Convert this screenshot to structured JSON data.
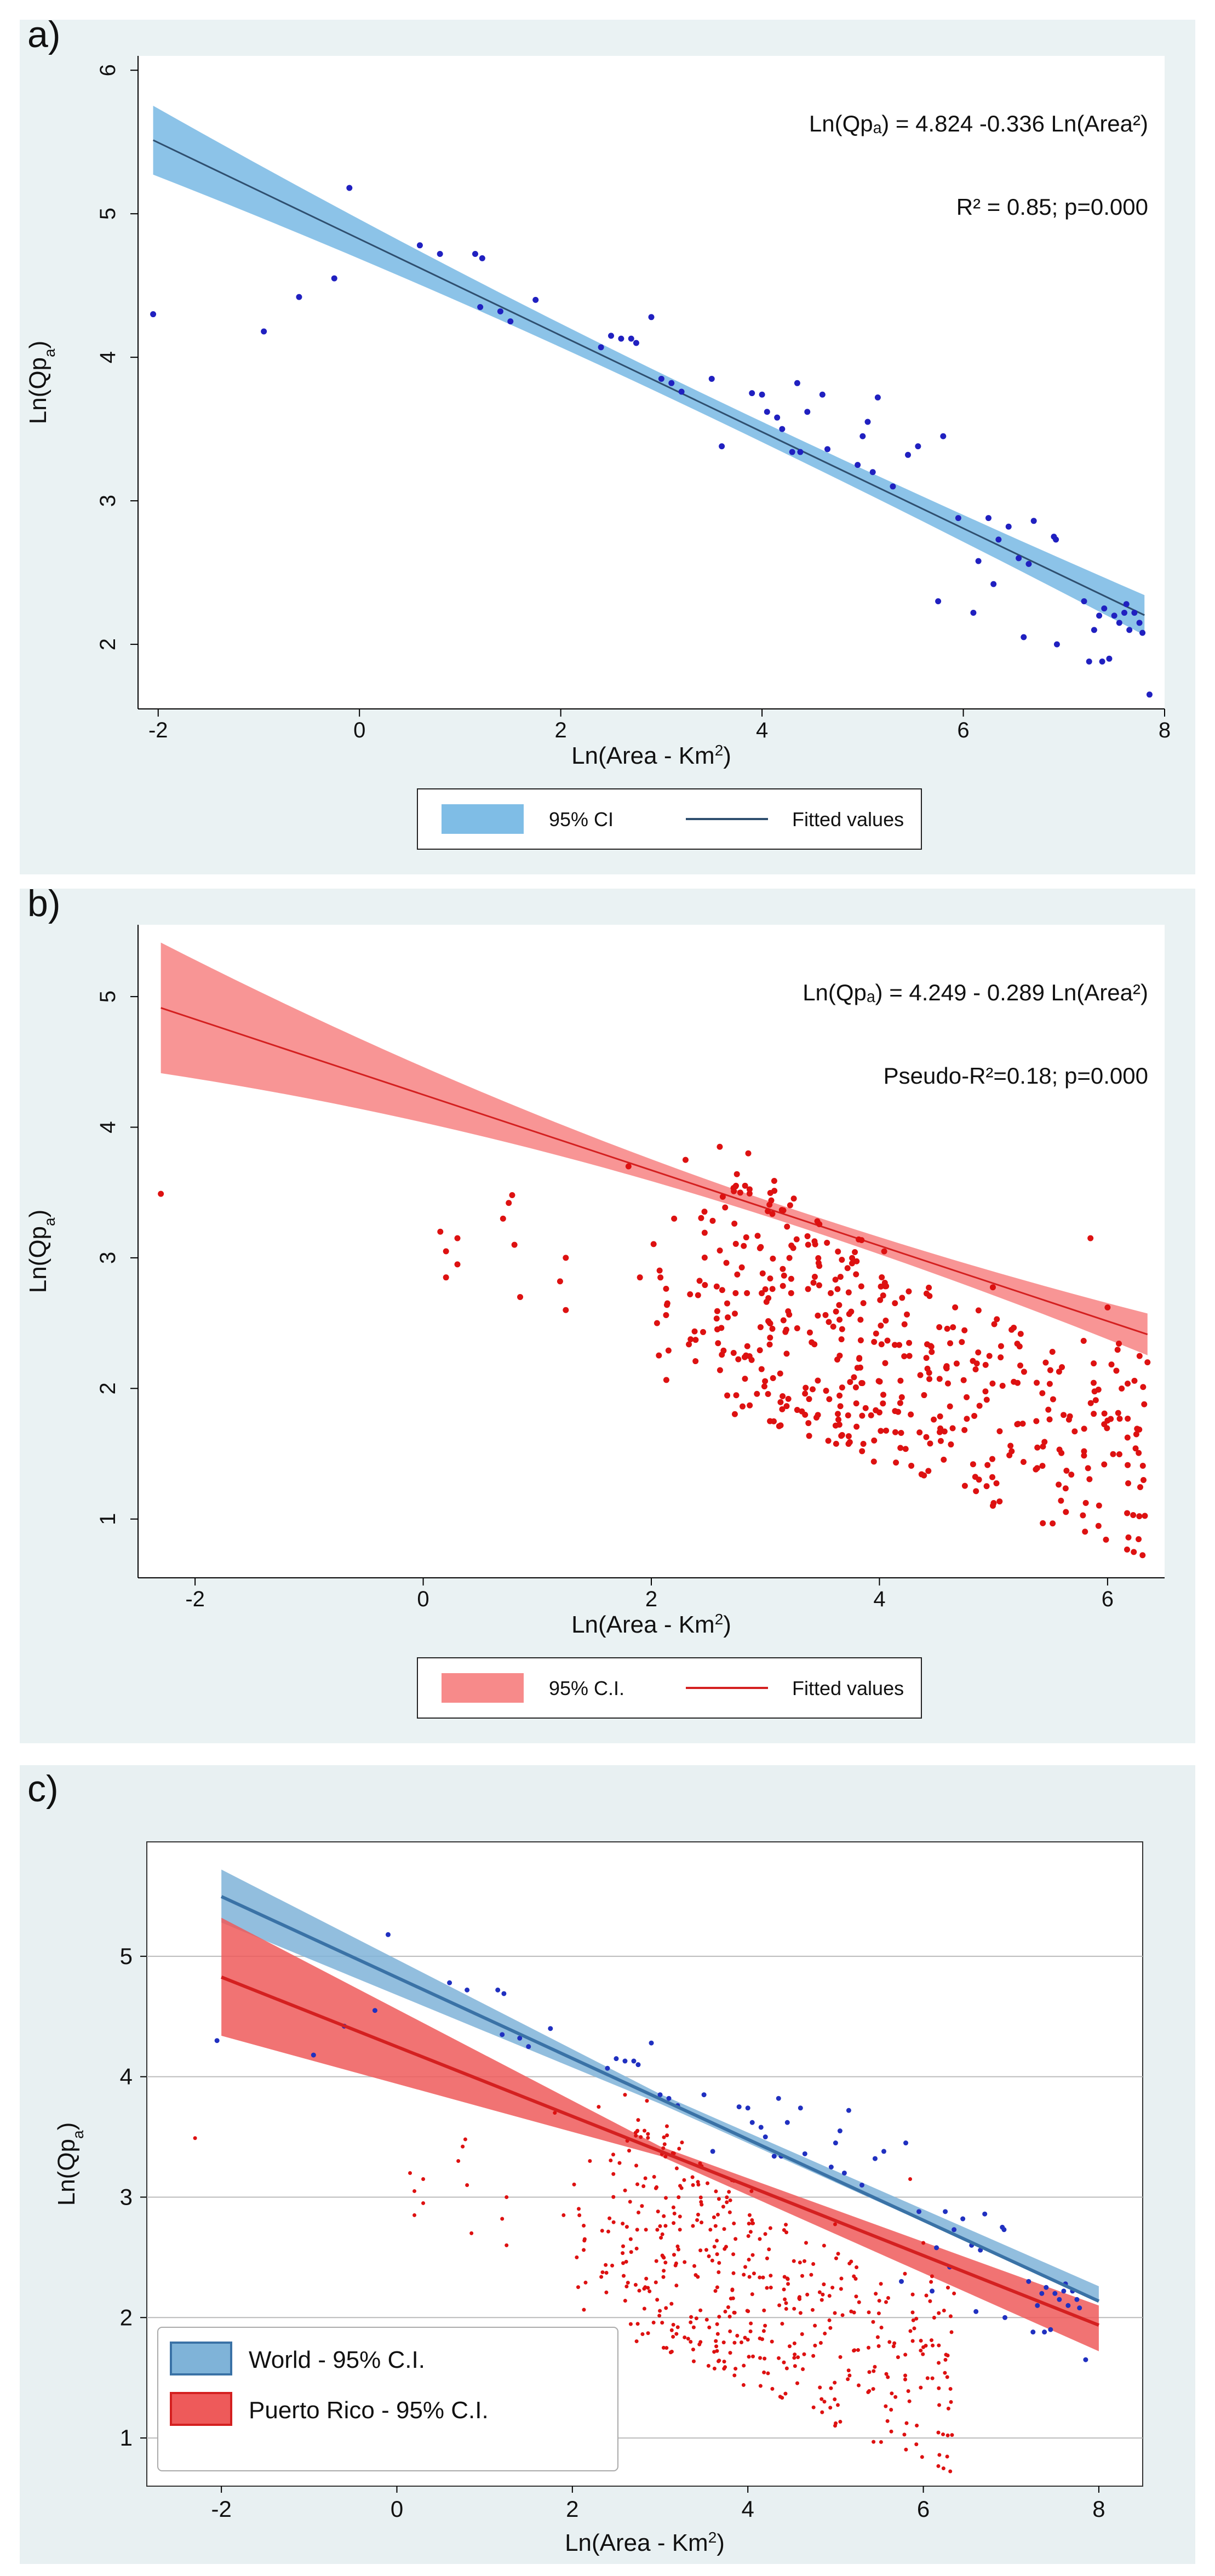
{
  "chart_data": [
    {
      "type": "scatter",
      "panel_label": "a)",
      "title": "",
      "xlabel": "Ln(Area - Km",
      "xlabel_sup": "2",
      "xlabel_end": ")",
      "ylabel": "Ln(Qp",
      "ylabel_sub": "a",
      "ylabel_end": ")",
      "xlim": [
        -2.2,
        8.0
      ],
      "ylim": [
        1.55,
        6.1
      ],
      "xticks": [
        -2,
        0,
        2,
        4,
        6,
        8
      ],
      "yticks": [
        2,
        3,
        4,
        5,
        6
      ],
      "grid": false,
      "equation": "Ln(Qpₐ) = 4.824 -0.336 Ln(Area²)",
      "stats": "R² = 0.85; p=0.000",
      "fit": {
        "intercept": 4.824,
        "slope": -0.336,
        "x_range": [
          -2.05,
          7.8
        ]
      },
      "ci_half_width": {
        "at_min": 0.24,
        "at_mean": 0.07,
        "at_max": 0.14,
        "x_mean": 3.5
      },
      "legend": [
        "95% CI",
        "Fitted values"
      ],
      "colors": {
        "points": "#2020c0",
        "band": "#7fbde6",
        "line": "#2f4f6f"
      },
      "points": [
        [
          -2.05,
          4.3
        ],
        [
          -0.95,
          4.18
        ],
        [
          -0.6,
          4.42
        ],
        [
          -0.25,
          4.55
        ],
        [
          -0.1,
          5.18
        ],
        [
          0.6,
          4.78
        ],
        [
          0.8,
          4.72
        ],
        [
          1.15,
          4.72
        ],
        [
          1.22,
          4.69
        ],
        [
          1.2,
          4.35
        ],
        [
          1.4,
          4.32
        ],
        [
          1.5,
          4.25
        ],
        [
          1.75,
          4.4
        ],
        [
          2.4,
          4.07
        ],
        [
          2.5,
          4.15
        ],
        [
          2.6,
          4.13
        ],
        [
          2.7,
          4.13
        ],
        [
          2.75,
          4.1
        ],
        [
          2.9,
          4.28
        ],
        [
          3.0,
          3.85
        ],
        [
          3.1,
          3.82
        ],
        [
          3.2,
          3.76
        ],
        [
          3.5,
          3.85
        ],
        [
          3.6,
          3.38
        ],
        [
          3.9,
          3.75
        ],
        [
          4.0,
          3.74
        ],
        [
          4.05,
          3.62
        ],
        [
          4.15,
          3.58
        ],
        [
          4.2,
          3.5
        ],
        [
          4.3,
          3.34
        ],
        [
          4.35,
          3.82
        ],
        [
          4.38,
          3.34
        ],
        [
          4.45,
          3.62
        ],
        [
          4.6,
          3.74
        ],
        [
          4.65,
          3.36
        ],
        [
          4.95,
          3.25
        ],
        [
          5.0,
          3.45
        ],
        [
          5.05,
          3.55
        ],
        [
          5.1,
          3.2
        ],
        [
          5.15,
          3.72
        ],
        [
          5.3,
          3.1
        ],
        [
          5.45,
          3.32
        ],
        [
          5.55,
          3.38
        ],
        [
          5.8,
          3.45
        ],
        [
          5.75,
          2.3
        ],
        [
          5.95,
          2.88
        ],
        [
          6.1,
          2.22
        ],
        [
          6.15,
          2.58
        ],
        [
          6.25,
          2.88
        ],
        [
          6.3,
          2.42
        ],
        [
          6.35,
          2.73
        ],
        [
          6.45,
          2.82
        ],
        [
          6.55,
          2.6
        ],
        [
          6.6,
          2.05
        ],
        [
          6.65,
          2.56
        ],
        [
          6.7,
          2.86
        ],
        [
          6.9,
          2.75
        ],
        [
          6.92,
          2.73
        ],
        [
          6.93,
          2.0
        ],
        [
          7.2,
          2.3
        ],
        [
          7.25,
          1.88
        ],
        [
          7.3,
          2.1
        ],
        [
          7.35,
          2.2
        ],
        [
          7.38,
          1.88
        ],
        [
          7.45,
          1.9
        ],
        [
          7.5,
          2.2
        ],
        [
          7.55,
          2.15
        ],
        [
          7.6,
          2.22
        ],
        [
          7.65,
          2.1
        ],
        [
          7.7,
          2.22
        ],
        [
          7.75,
          2.15
        ],
        [
          7.78,
          2.08
        ],
        [
          7.85,
          1.65
        ],
        [
          7.4,
          2.25
        ],
        [
          7.62,
          2.28
        ]
      ]
    },
    {
      "type": "scatter",
      "panel_label": "b)",
      "title": "",
      "xlabel": "Ln(Area - Km",
      "xlabel_sup": "2",
      "xlabel_end": ")",
      "ylabel": "Ln(Qp",
      "ylabel_sub": "a",
      "ylabel_end": ")",
      "xlim": [
        -2.5,
        6.5
      ],
      "ylim": [
        0.55,
        5.55
      ],
      "xticks": [
        -2,
        0,
        2,
        4,
        6
      ],
      "yticks": [
        1,
        2,
        3,
        4,
        5
      ],
      "grid": false,
      "equation": "Ln(Qpₐ) = 4.249 - 0.289 Ln(Area²)",
      "stats": "Pseudo-R²=0.18; p=0.000",
      "fit": {
        "intercept": 4.249,
        "slope": -0.289,
        "x_range": [
          -2.3,
          6.35
        ]
      },
      "ci_half_width": {
        "at_min": 0.5,
        "at_mean": 0.06,
        "at_max": 0.16,
        "x_mean": 3.3
      },
      "legend": [
        "95% C.I.",
        "Fitted values"
      ],
      "colors": {
        "points": "#dd1111",
        "band": "#f78a8a",
        "line": "#d42020"
      },
      "points_summary": "Approximately 700 Puerto Rico observations, Ln(Area) from -2.3 to 6.35, Ln(Qpa) from 0.7 to 3.85, concentrated between Ln(Area) 2 and 6.3; drawn as generated scatter.",
      "points": [
        [
          -2.3,
          3.49
        ],
        [
          0.15,
          3.2
        ],
        [
          0.2,
          3.05
        ],
        [
          0.2,
          2.85
        ],
        [
          0.3,
          3.15
        ],
        [
          0.3,
          2.95
        ],
        [
          0.7,
          3.3
        ],
        [
          0.75,
          3.42
        ],
        [
          0.78,
          3.48
        ],
        [
          0.8,
          3.1
        ],
        [
          0.85,
          2.7
        ],
        [
          1.2,
          2.82
        ],
        [
          1.25,
          3.0
        ],
        [
          1.25,
          2.6
        ],
        [
          1.8,
          3.7
        ],
        [
          1.9,
          2.85
        ],
        [
          2.05,
          2.5
        ],
        [
          2.2,
          3.3
        ],
        [
          2.3,
          3.75
        ],
        [
          2.6,
          3.85
        ],
        [
          2.85,
          3.8
        ],
        [
          6.0,
          2.62
        ],
        [
          6.35,
          2.2
        ],
        [
          5.85,
          3.15
        ]
      ],
      "point_clusters": [
        {
          "x": 2.1,
          "y_min": 2.0,
          "y_max": 3.2,
          "n": 10
        },
        {
          "x": 2.4,
          "y_min": 1.9,
          "y_max": 3.5,
          "n": 14
        },
        {
          "x": 2.6,
          "y_min": 1.85,
          "y_max": 3.6,
          "n": 18
        },
        {
          "x": 2.8,
          "y_min": 1.8,
          "y_max": 3.7,
          "n": 30
        },
        {
          "x": 3.0,
          "y_min": 1.7,
          "y_max": 3.6,
          "n": 34
        },
        {
          "x": 3.2,
          "y_min": 1.7,
          "y_max": 3.5,
          "n": 30
        },
        {
          "x": 3.4,
          "y_min": 1.6,
          "y_max": 3.3,
          "n": 28
        },
        {
          "x": 3.6,
          "y_min": 1.55,
          "y_max": 3.2,
          "n": 30
        },
        {
          "x": 3.8,
          "y_min": 1.5,
          "y_max": 3.2,
          "n": 34
        },
        {
          "x": 4.0,
          "y_min": 1.4,
          "y_max": 3.1,
          "n": 26
        },
        {
          "x": 4.2,
          "y_min": 1.35,
          "y_max": 2.9,
          "n": 22
        },
        {
          "x": 4.4,
          "y_min": 1.3,
          "y_max": 2.8,
          "n": 20
        },
        {
          "x": 4.6,
          "y_min": 1.25,
          "y_max": 2.7,
          "n": 20
        },
        {
          "x": 4.8,
          "y_min": 1.2,
          "y_max": 2.6,
          "n": 18
        },
        {
          "x": 5.0,
          "y_min": 1.1,
          "y_max": 2.8,
          "n": 20
        },
        {
          "x": 5.2,
          "y_min": 1.2,
          "y_max": 2.5,
          "n": 16
        },
        {
          "x": 5.45,
          "y_min": 0.95,
          "y_max": 2.4,
          "n": 18
        },
        {
          "x": 5.65,
          "y_min": 1.0,
          "y_max": 2.2,
          "n": 14
        },
        {
          "x": 5.85,
          "y_min": 0.85,
          "y_max": 2.5,
          "n": 18
        },
        {
          "x": 6.05,
          "y_min": 0.8,
          "y_max": 2.6,
          "n": 16
        },
        {
          "x": 6.25,
          "y_min": 0.7,
          "y_max": 2.3,
          "n": 26
        }
      ]
    },
    {
      "type": "scatter",
      "panel_label": "c)",
      "title": "",
      "xlabel": "Ln(Area - Km",
      "xlabel_sup": "2",
      "xlabel_end": ")",
      "ylabel": "Ln(Qp",
      "ylabel_sub": "a",
      "ylabel_end": ")",
      "xlim": [
        -2.85,
        8.5
      ],
      "ylim": [
        0.6,
        5.95
      ],
      "xticks": [
        -2,
        0,
        2,
        4,
        6,
        8
      ],
      "yticks": [
        1,
        2,
        3,
        4,
        5
      ],
      "grid": true,
      "legend": [
        "World - 95% C.I.",
        "Puerto Rico - 95% C.I."
      ],
      "colors": {
        "world_points": "#2030c0",
        "world_band": "#7fb3d8",
        "world_line": "#3a72a6",
        "pr_points": "#dd1111",
        "pr_band": "#ee5a5a",
        "pr_line": "#d42020",
        "grid": "#bbbbbb"
      },
      "series": [
        {
          "name": "World - 95% C.I.",
          "intercept": 4.824,
          "slope": -0.336,
          "x_range": [
            -2.0,
            8.0
          ],
          "band_upper": [
            5.72,
            2.26
          ],
          "band_lower": [
            5.28,
            2.14
          ]
        },
        {
          "name": "Puerto Rico - 95% C.I.",
          "intercept": 4.249,
          "slope": -0.289,
          "x_range": [
            -2.0,
            8.0
          ],
          "band_upper": [
            5.32,
            2.1
          ],
          "band_lower": [
            4.34,
            1.72
          ]
        }
      ],
      "description": "Overlay of panels a) and b): World observations (blue) and Puerto Rico observations (red) with both fitted regressions and confidence bands."
    }
  ]
}
